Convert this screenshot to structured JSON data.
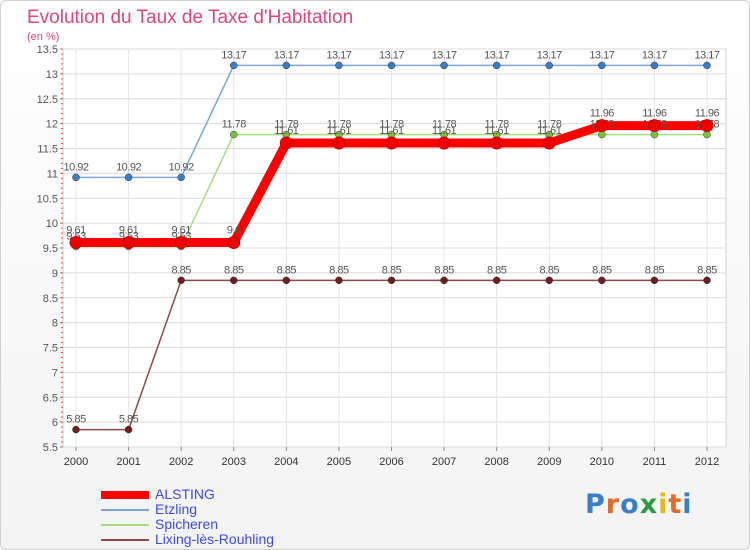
{
  "header": {
    "title": "Evolution du Taux de Taxe d'Habitation",
    "unit": "(en %)"
  },
  "logo": {
    "letters": [
      "P",
      "r",
      "o",
      "x",
      "i",
      "t",
      "i"
    ],
    "colors": [
      "#3a7ec9",
      "#e06a2a",
      "#3a7ec9",
      "#2c9b45",
      "#e8b722",
      "#e06a2a",
      "#3a7ec9"
    ]
  },
  "chart_data": {
    "type": "line",
    "title": "Evolution du Taux de Taxe d'Habitation",
    "ylabel": "(en %)",
    "xlabel": "",
    "ylim": [
      5.5,
      13.5
    ],
    "yticks": [
      "5.5",
      "6",
      "6.5",
      "7",
      "7.5",
      "8",
      "8.5",
      "9",
      "9.5",
      "10",
      "10.5",
      "11",
      "11.5",
      "12",
      "12.5",
      "13",
      "13.5"
    ],
    "x": [
      "2000",
      "2001",
      "2002",
      "2003",
      "2004",
      "2005",
      "2006",
      "2007",
      "2008",
      "2009",
      "2010",
      "2011",
      "2012"
    ],
    "series": [
      {
        "name": "Etzling",
        "color": "#7aa6d6",
        "marker": "#3a7ec9",
        "emphasis": false,
        "values": [
          10.92,
          10.92,
          10.92,
          13.17,
          13.17,
          13.17,
          13.17,
          13.17,
          13.17,
          13.17,
          13.17,
          13.17,
          13.17
        ],
        "labels": [
          "10.92",
          "10.92",
          "10.92",
          "13.17",
          "13.17",
          "13.17",
          "13.17",
          "13.17",
          "13.17",
          "13.17",
          "13.17",
          "13.17",
          "13.17"
        ]
      },
      {
        "name": "Spicheren",
        "color": "#a8dc7a",
        "marker": "#7cc23e",
        "emphasis": false,
        "values": [
          9.53,
          9.53,
          9.53,
          11.78,
          11.78,
          11.78,
          11.78,
          11.78,
          11.78,
          11.78,
          11.78,
          11.78,
          11.78
        ],
        "labels": [
          "9.53",
          "9.53",
          "9.53",
          "11.78",
          "11.78",
          "11.78",
          "11.78",
          "11.78",
          "11.78",
          "11.78",
          "11.78",
          "11.78",
          "11.78"
        ]
      },
      {
        "name": "Lixing-lès-Rouhling",
        "color": "#8b4a4a",
        "marker": "#6b1f1f",
        "emphasis": false,
        "values": [
          5.85,
          5.85,
          8.85,
          8.85,
          8.85,
          8.85,
          8.85,
          8.85,
          8.85,
          8.85,
          8.85,
          8.85,
          8.85
        ],
        "labels": [
          "5.85",
          "5.85",
          "8.85",
          "8.85",
          "8.85",
          "8.85",
          "8.85",
          "8.85",
          "8.85",
          "8.85",
          "8.85",
          "8.85",
          "8.85"
        ]
      },
      {
        "name": "ALSTING",
        "color": "#ff0000",
        "marker": "#ee0000",
        "emphasis": true,
        "values": [
          9.61,
          9.61,
          9.61,
          9.61,
          11.61,
          11.61,
          11.61,
          11.61,
          11.61,
          11.61,
          11.96,
          11.96,
          11.96
        ],
        "labels": [
          "9.61",
          "9.61",
          "9.61",
          "9.6",
          "11.61",
          "11.61",
          "11.61",
          "11.61",
          "11.61",
          "11.61",
          "11.96",
          "11.96",
          "11.96"
        ]
      }
    ],
    "legend_order": [
      "ALSTING",
      "Etzling",
      "Spicheren",
      "Lixing-lès-Rouhling"
    ],
    "legend_position": "bottom-left",
    "grid": true
  }
}
